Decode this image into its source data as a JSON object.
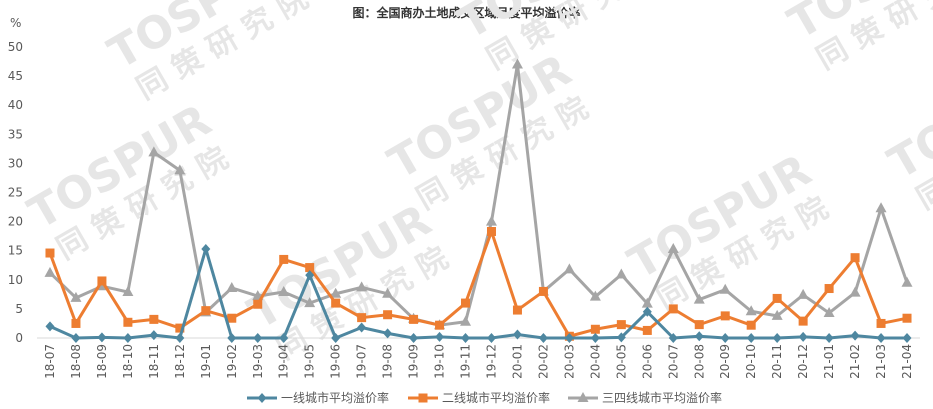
{
  "chart_data": {
    "type": "line",
    "title": "图：全国商办土地成交区域月度平均溢价率",
    "ylabel": "%",
    "ylim": [
      0,
      50
    ],
    "yticks": [
      0,
      5,
      10,
      15,
      20,
      25,
      30,
      35,
      40,
      45,
      50
    ],
    "grid": false,
    "legend_position": "bottom",
    "categories": [
      "18-07",
      "18-08",
      "18-09",
      "18-10",
      "18-11",
      "18-12",
      "19-01",
      "19-02",
      "19-03",
      "19-04",
      "19-05",
      "19-06",
      "19-07",
      "19-08",
      "19-09",
      "19-10",
      "19-11",
      "19-12",
      "20-01",
      "20-02",
      "20-03",
      "20-04",
      "20-05",
      "20-06",
      "20-07",
      "20-08",
      "20-09",
      "20-10",
      "20-11",
      "20-12",
      "21-01",
      "21-02",
      "21-03",
      "21-04"
    ],
    "series": [
      {
        "name": "一线城市平均溢价率",
        "color": "#4E87A0",
        "marker": "diamond",
        "values": [
          2.0,
          0.0,
          0.1,
          0.0,
          0.5,
          0.0,
          15.3,
          0.0,
          0.0,
          0.0,
          10.8,
          0.0,
          1.8,
          0.8,
          0.0,
          0.2,
          0.0,
          0.0,
          0.6,
          0.0,
          0.0,
          0.0,
          0.1,
          4.5,
          0.0,
          0.3,
          0.0,
          0.0,
          0.0,
          0.2,
          0.0,
          0.4,
          0.0,
          0.0
        ]
      },
      {
        "name": "二线城市平均溢价率",
        "color": "#ED7D31",
        "marker": "square",
        "values": [
          14.6,
          2.5,
          9.8,
          2.7,
          3.2,
          1.7,
          4.7,
          3.4,
          5.8,
          13.5,
          12.1,
          6.0,
          3.5,
          4.0,
          3.2,
          2.2,
          6.0,
          18.3,
          4.8,
          8.0,
          0.3,
          1.5,
          2.3,
          1.3,
          5.0,
          2.3,
          3.8,
          2.2,
          6.8,
          2.9,
          8.5,
          13.8,
          2.5,
          3.4
        ]
      },
      {
        "name": "三四线城市平均溢价率",
        "color": "#A5A5A5",
        "marker": "triangle",
        "values": [
          11.2,
          6.9,
          8.9,
          7.9,
          31.9,
          28.8,
          4.4,
          8.6,
          7.2,
          7.9,
          6.0,
          7.6,
          8.7,
          7.6,
          3.3,
          2.2,
          2.8,
          20.0,
          47.0,
          8.0,
          11.8,
          7.1,
          10.9,
          5.9,
          15.3,
          6.6,
          8.3,
          4.6,
          3.8,
          7.4,
          4.3,
          7.8,
          22.3,
          9.5
        ]
      }
    ]
  },
  "watermark": {
    "logo_text": "TOSPUR",
    "chinese_text": "同 策 研 究 院"
  }
}
